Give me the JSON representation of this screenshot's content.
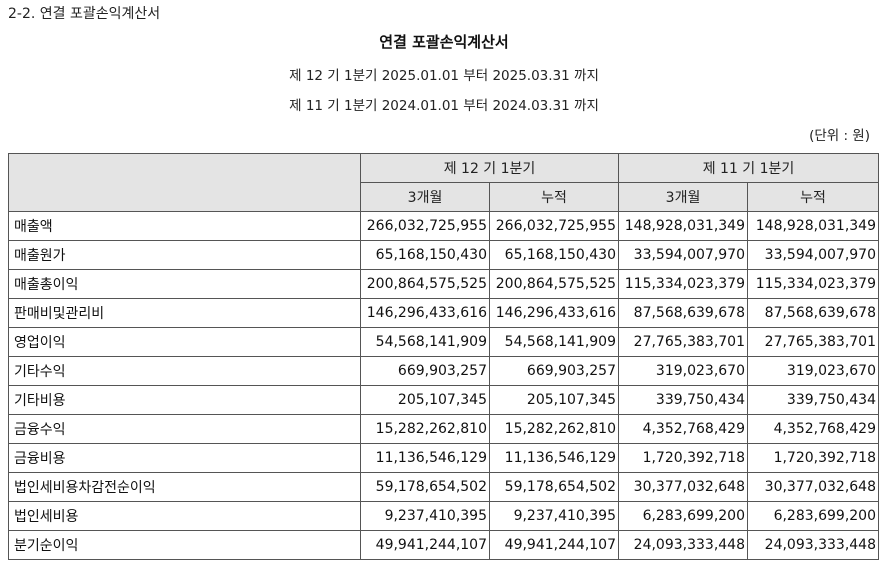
{
  "section_heading": "2-2. 연결 포괄손익계산서",
  "title": "연결 포괄손익계산서",
  "periods": [
    "제 12 기 1분기 2025.01.01 부터 2025.03.31 까지",
    "제 11 기 1분기 2024.01.01 부터 2024.03.31 까지"
  ],
  "unit": "(단위 : 원)",
  "table": {
    "period_headers": [
      "제 12 기 1분기",
      "제 11 기 1분기"
    ],
    "sub_headers": [
      "3개월",
      "누적",
      "3개월",
      "누적"
    ],
    "rows": [
      {
        "label": "매출액",
        "values": [
          "266,032,725,955",
          "266,032,725,955",
          "148,928,031,349",
          "148,928,031,349"
        ]
      },
      {
        "label": "매출원가",
        "values": [
          "65,168,150,430",
          "65,168,150,430",
          "33,594,007,970",
          "33,594,007,970"
        ]
      },
      {
        "label": "매출총이익",
        "values": [
          "200,864,575,525",
          "200,864,575,525",
          "115,334,023,379",
          "115,334,023,379"
        ]
      },
      {
        "label": "판매비및관리비",
        "values": [
          "146,296,433,616",
          "146,296,433,616",
          "87,568,639,678",
          "87,568,639,678"
        ]
      },
      {
        "label": "영업이익",
        "values": [
          "54,568,141,909",
          "54,568,141,909",
          "27,765,383,701",
          "27,765,383,701"
        ]
      },
      {
        "label": "기타수익",
        "values": [
          "669,903,257",
          "669,903,257",
          "319,023,670",
          "319,023,670"
        ]
      },
      {
        "label": "기타비용",
        "values": [
          "205,107,345",
          "205,107,345",
          "339,750,434",
          "339,750,434"
        ]
      },
      {
        "label": "금융수익",
        "values": [
          "15,282,262,810",
          "15,282,262,810",
          "4,352,768,429",
          "4,352,768,429"
        ]
      },
      {
        "label": "금융비용",
        "values": [
          "11,136,546,129",
          "11,136,546,129",
          "1,720,392,718",
          "1,720,392,718"
        ]
      },
      {
        "label": "법인세비용차감전순이익",
        "values": [
          "59,178,654,502",
          "59,178,654,502",
          "30,377,032,648",
          "30,377,032,648"
        ]
      },
      {
        "label": "법인세비용",
        "values": [
          "9,237,410,395",
          "9,237,410,395",
          "6,283,699,200",
          "6,283,699,200"
        ]
      },
      {
        "label": "분기순이익",
        "values": [
          "49,941,244,107",
          "49,941,244,107",
          "24,093,333,448",
          "24,093,333,448"
        ]
      }
    ]
  }
}
